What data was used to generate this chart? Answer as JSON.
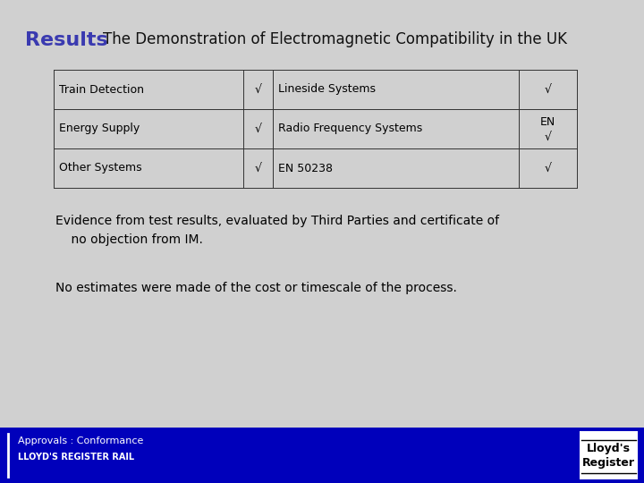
{
  "bg_color": "#d0d0d0",
  "title_label": "Results",
  "title_color": "#3a3ab0",
  "title_fontsize": 16,
  "subtitle": "The Demonstration of Electromagnetic Compatibility in the UK",
  "subtitle_fontsize": 12,
  "table_data": [
    [
      "Train Detection",
      "√",
      "Lineside Systems",
      "√"
    ],
    [
      "Energy Supply",
      "√",
      "Radio Frequency Systems",
      "EN\n√"
    ],
    [
      "Other Systems",
      "√",
      "EN 50238",
      "√"
    ]
  ],
  "table_fontsize": 9,
  "body_text1": "Evidence from test results, evaluated by Third Parties and certificate of\n    no objection from IM.",
  "body_text2": "No estimates were made of the cost or timescale of the process.",
  "body_fontsize": 10,
  "footer_bg": "#0000bb",
  "footer_text1": "Approvals : Conformance",
  "footer_text2": "LLOYD'S REGISTER RAIL",
  "footer_fontsize1": 8,
  "footer_fontsize2": 7,
  "logo_text1": "Lloyd's",
  "logo_text2": "Register",
  "logo_fontsize": 9
}
